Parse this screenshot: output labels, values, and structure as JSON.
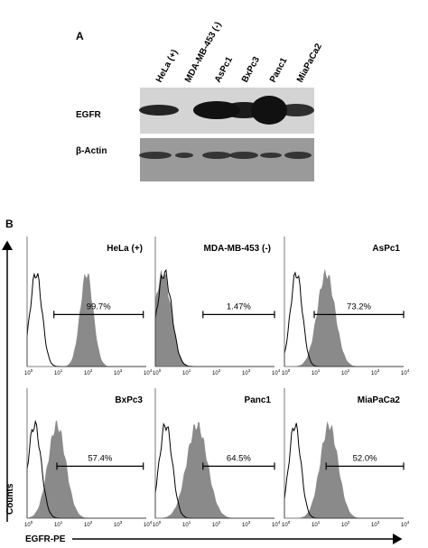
{
  "panel_a": {
    "label": "A",
    "lanes": [
      "HeLa (+)",
      "MDA-MB-453 (-)",
      "AsPc1",
      "BxPc3",
      "Panc1",
      "MiaPaCa2"
    ],
    "rows": [
      "EGFR",
      "β-Actin"
    ]
  },
  "panel_b": {
    "label": "B",
    "y_label": "Counts",
    "x_label": "EGFR-PE",
    "x_ticks": [
      {
        "base": "10",
        "exp": "0"
      },
      {
        "base": "10",
        "exp": "1"
      },
      {
        "base": "10",
        "exp": "2"
      },
      {
        "base": "10",
        "exp": "3"
      },
      {
        "base": "10",
        "exp": "4"
      }
    ],
    "panels": [
      {
        "name": "HeLa (+)",
        "percent": "99.7%"
      },
      {
        "name": "MDA-MB-453 (-)",
        "percent": "1.47%"
      },
      {
        "name": "AsPc1",
        "percent": "73.2%"
      },
      {
        "name": "BxPc3",
        "percent": "57.4%"
      },
      {
        "name": "Panc1",
        "percent": "64.5%"
      },
      {
        "name": "MiaPaCa2",
        "percent": "52.0%"
      }
    ]
  }
}
